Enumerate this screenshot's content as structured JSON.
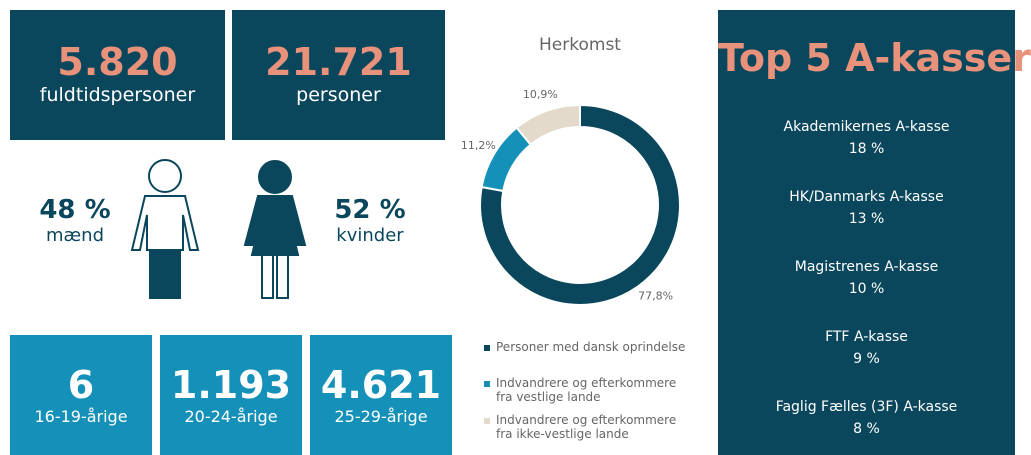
{
  "kpis": [
    {
      "value": "5.820",
      "label": "fuldtidspersoner"
    },
    {
      "value": "21.721",
      "label": "personer"
    }
  ],
  "gender": [
    {
      "value": "48 %",
      "label": "mænd"
    },
    {
      "value": "52 %",
      "label": "kvinder"
    }
  ],
  "ages": [
    {
      "value": "6",
      "label": "16-19-årige"
    },
    {
      "value": "1.193",
      "label": "20-24-årige"
    },
    {
      "value": "4.621",
      "label": "25-29-årige"
    }
  ],
  "chart_data": {
    "type": "pie",
    "title": "Herkomst",
    "donut": true,
    "categories": [
      "Personer med dansk oprindelse",
      "Indvandrere og efterkommere fra vestlige lande",
      "Indvandrere og efterkommere fra ikke-vestlige lande"
    ],
    "values": [
      77.8,
      11.2,
      10.9
    ],
    "value_labels": [
      "77,8%",
      "11,2%",
      "10,9%"
    ],
    "colors": [
      "#0b475c",
      "#1591b9",
      "#e3dacb"
    ]
  },
  "top5": {
    "title": "Top 5 A-kasser",
    "items": [
      {
        "name": "Akademikernes A-kasse",
        "share": "18 %"
      },
      {
        "name": "HK/Danmarks A-kasse",
        "share": "13 %"
      },
      {
        "name": "Magistrenes A-kasse",
        "share": "10 %"
      },
      {
        "name": "FTF A-kasse",
        "share": "9 %"
      },
      {
        "name": "Faglig Fælles (3F) A-kasse",
        "share": "8 %"
      }
    ]
  }
}
